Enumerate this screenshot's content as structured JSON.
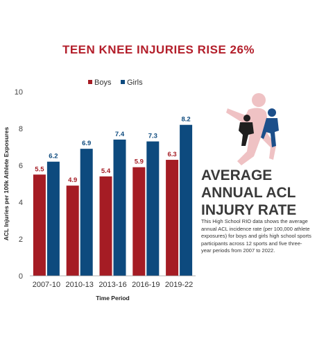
{
  "headline": "TEEN KNEE INJURIES RISE 26%",
  "side_panel": {
    "title_lines": [
      "AVERAGE",
      "ANNUAL ACL",
      "INJURY RATE"
    ],
    "description": "This High School RIO data shows the average annual ACL incidence rate (per 100,000 athlete exposures) for boys and girls high school sports participants across 12 sports and five three-year periods from 2007 to 2022."
  },
  "colors": {
    "boys": "#a51c24",
    "girls": "#0d4a7e",
    "headline": "#b31e2a"
  },
  "chart_data": {
    "type": "bar",
    "title": "",
    "xlabel": "Time Period",
    "ylabel": "ACL Injuries per 100k Athlete Exposures",
    "categories": [
      "2007-10",
      "2010-13",
      "2013-16",
      "2016-19",
      "2019-22"
    ],
    "series": [
      {
        "name": "Boys",
        "values": [
          5.5,
          4.9,
          5.4,
          5.9,
          6.3
        ]
      },
      {
        "name": "Girls",
        "values": [
          6.2,
          6.9,
          7.4,
          7.3,
          8.2
        ]
      }
    ],
    "value_labels": {
      "Boys": [
        "5.5",
        "4.9",
        "5.4",
        "5.9",
        "6.3"
      ],
      "Girls": [
        "6.2",
        "6.9",
        "7.4",
        "7.3",
        "8.2"
      ]
    },
    "yticks": [
      0,
      2,
      4,
      6,
      8,
      10
    ],
    "ylim": [
      0,
      10
    ],
    "grid": false,
    "legend_position": "top"
  }
}
